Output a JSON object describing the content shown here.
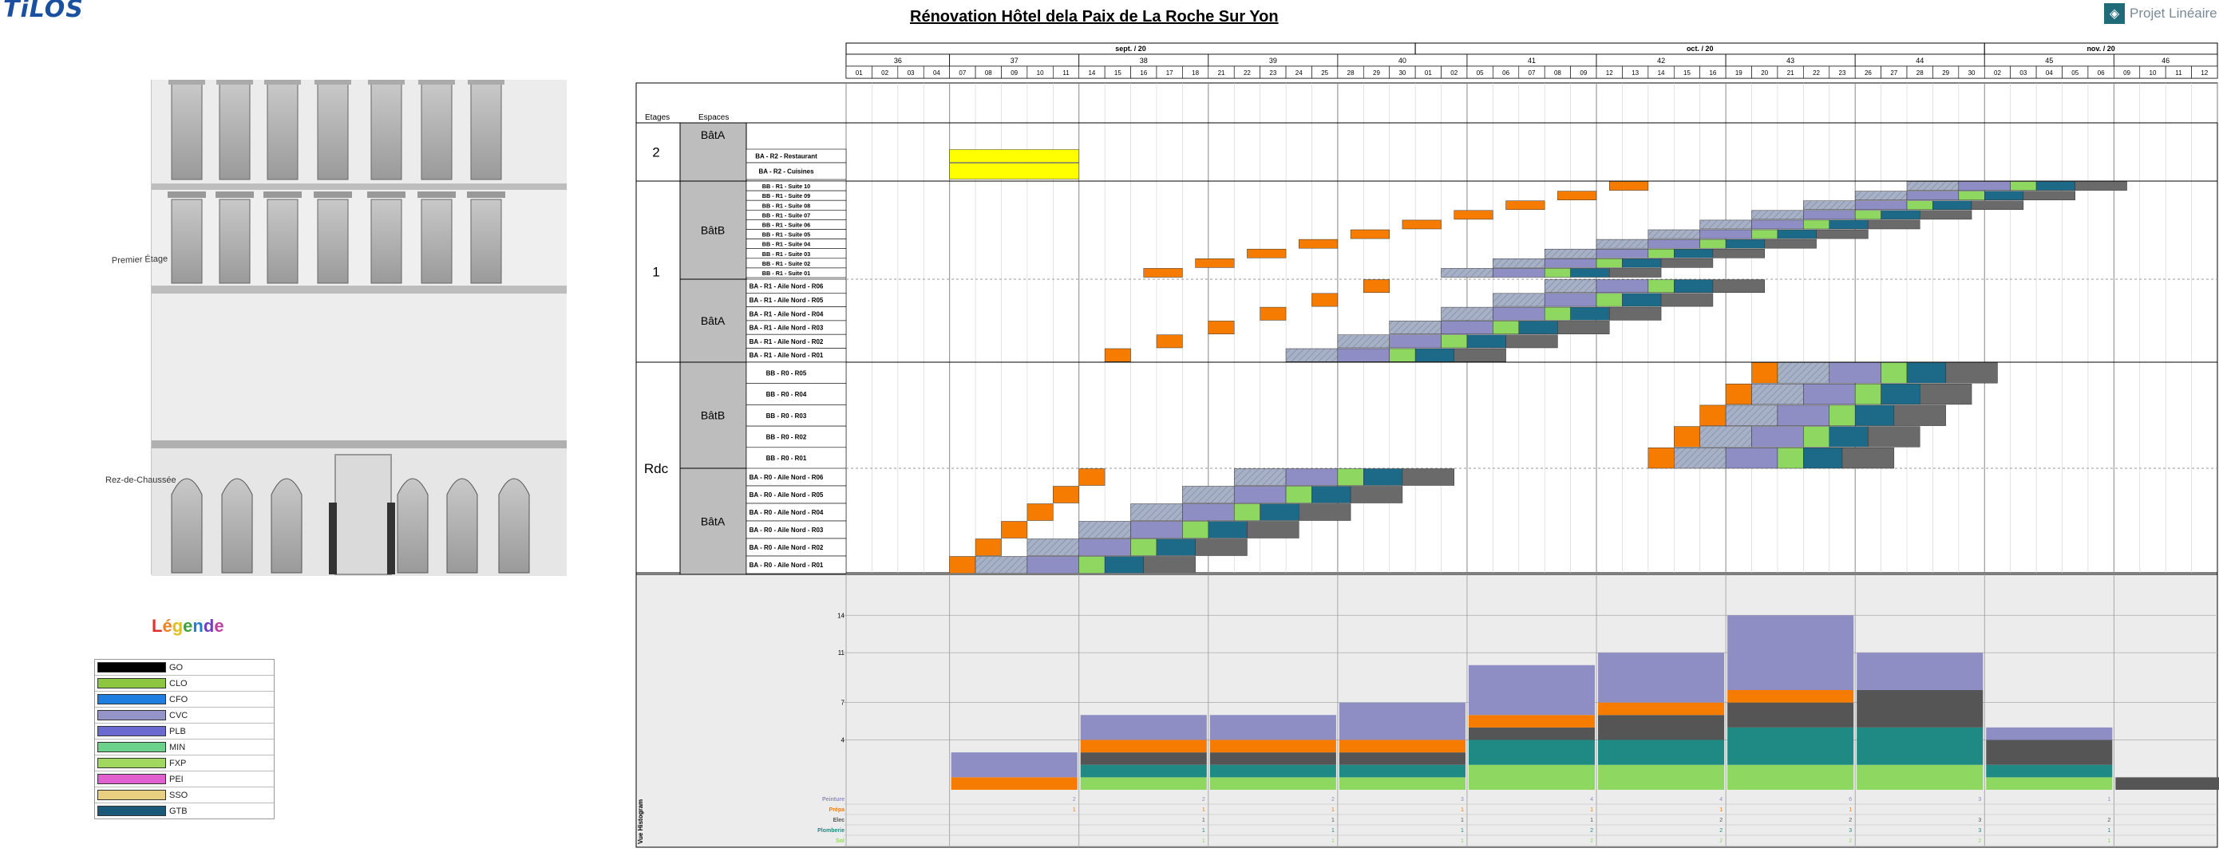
{
  "header": {
    "logo_text": "TiLOS",
    "title": "Rénovation Hôtel dela Paix de La Roche Sur Yon",
    "brand": "Projet Linéaire"
  },
  "facade": {
    "floor_labels": [
      "Premier Étage",
      "Rez-de-Chaussée"
    ]
  },
  "legend": {
    "title": "Légende",
    "title_colors": [
      "#e03030",
      "#f08020",
      "#e0c020",
      "#40a040",
      "#2080d0",
      "#7040c0",
      "#c040a0"
    ],
    "items": [
      {
        "label": "GO",
        "color": "#000000"
      },
      {
        "label": "CLO",
        "color": "#8dc63f"
      },
      {
        "label": "CFO",
        "color": "#1e7fe0"
      },
      {
        "label": "CVC",
        "color": "#9494c8"
      },
      {
        "label": "PLB",
        "color": "#6a6ad0"
      },
      {
        "label": "MIN",
        "color": "#6ad28a"
      },
      {
        "label": "FXP",
        "color": "#a0d860"
      },
      {
        "label": "PEI",
        "color": "#e060d0"
      },
      {
        "label": "SSO",
        "color": "#e8d080"
      },
      {
        "label": "GTB",
        "color": "#1a5a78"
      }
    ]
  },
  "timeline": {
    "months": [
      {
        "label": "sept. / 20"
      },
      {
        "label": "oct. / 20"
      },
      {
        "label": "nov. / 20"
      }
    ],
    "weeks": [
      "36",
      "37",
      "38",
      "39",
      "40",
      "41",
      "42",
      "43",
      "44",
      "45",
      "46"
    ],
    "days": [
      "01",
      "02",
      "03",
      "04",
      "07",
      "08",
      "09",
      "10",
      "11",
      "14",
      "15",
      "16",
      "17",
      "18",
      "21",
      "22",
      "23",
      "24",
      "25",
      "28",
      "29",
      "30",
      "01",
      "02",
      "05",
      "06",
      "07",
      "08",
      "09",
      "12",
      "13",
      "14",
      "15",
      "16",
      "19",
      "20",
      "21",
      "22",
      "23",
      "26",
      "27",
      "28",
      "29",
      "30",
      "02",
      "03",
      "04",
      "05",
      "06",
      "09",
      "10",
      "11",
      "12"
    ]
  },
  "columns": {
    "etages": "Etages",
    "espaces": "Espaces"
  },
  "floors": [
    {
      "label": "2"
    },
    {
      "label": "1"
    },
    {
      "label": "Rdc"
    }
  ],
  "buildings": [
    {
      "label": "BâtA"
    },
    {
      "label": "BâtB"
    },
    {
      "label": "BâtA"
    },
    {
      "label": "BâtB"
    },
    {
      "label": "BâtA"
    }
  ],
  "rows": [
    "BA - R2 - Restaurant",
    "BA - R2 - Cuisines",
    "BB - R1 - Suite 10",
    "BB - R1 - Suite 09",
    "BB - R1 - Suite 08",
    "BB - R1 - Suite 07",
    "BB - R1 - Suite 06",
    "BB - R1 - Suite 05",
    "BB - R1 - Suite 04",
    "BB - R1 - Suite 03",
    "BB - R1 - Suite 02",
    "BB - R1 - Suite 01",
    "BA - R1 - Aile Nord - R06",
    "BA - R1 - Aile Nord - R05",
    "BA - R1 - Aile Nord - R04",
    "BA - R1 - Aile Nord - R03",
    "BA - R1 - Aile Nord - R02",
    "BA - R1 - Aile Nord - R01",
    "BB - R0 - R05",
    "BB - R0 - R04",
    "BB - R0 - R03",
    "BB - R0 - R02",
    "BB - R0 - R01",
    "BA - R0 - Aile Nord - R06",
    "BA - R0 - Aile Nord - R05",
    "BA - R0 - Aile Nord - R04",
    "BA - R0 - Aile Nord - R03",
    "BA - R0 - Aile Nord - R02",
    "BA - R0 - Aile Nord - R01"
  ],
  "task_colors": {
    "orange": "#f57c00",
    "hatch": "#a8b0c8",
    "purple": "#8e8ec4",
    "green": "#8ed862",
    "teal": "#1c6a88",
    "grey": "#6a6a6a",
    "yellow": "#ffff00"
  },
  "chart_data": {
    "type": "bar",
    "title": "",
    "xlabel": "",
    "ylabel": "Vue Histogram",
    "ylim": [
      0,
      16
    ],
    "y_ticks": [
      "4",
      "7",
      "11",
      "14"
    ],
    "categories": [
      "37",
      "38",
      "39",
      "40",
      "41",
      "42",
      "43",
      "44",
      "45",
      "46"
    ],
    "series": [
      {
        "name": "Sol",
        "color": "#8ed862",
        "values": [
          0,
          1,
          1,
          1,
          2,
          2,
          2,
          2,
          1,
          0
        ]
      },
      {
        "name": "Plomberie",
        "color": "#1f8a84",
        "values": [
          0,
          1,
          1,
          1,
          2,
          2,
          3,
          3,
          1,
          0
        ]
      },
      {
        "name": "Elec",
        "color": "#555555",
        "values": [
          0,
          1,
          1,
          1,
          1,
          2,
          2,
          3,
          2,
          1
        ]
      },
      {
        "name": "Prépa",
        "color": "#f57c00",
        "values": [
          1,
          1,
          1,
          1,
          1,
          1,
          1,
          0,
          0,
          0
        ]
      },
      {
        "name": "Peinture",
        "color": "#8e8ec4",
        "values": [
          2,
          2,
          2,
          3,
          4,
          4,
          6,
          3,
          1,
          0
        ]
      }
    ],
    "table_values": {
      "Peinture": [
        "2",
        "2",
        "2",
        "3",
        "4",
        "4",
        "6",
        "3",
        "1",
        ""
      ],
      "Prépa": [
        "1",
        "1",
        "1",
        "1",
        "1",
        "1",
        "1",
        "",
        "",
        ""
      ],
      "Elec": [
        "",
        "1",
        "1",
        "1",
        "1",
        "2",
        "2",
        "3",
        "2",
        "1"
      ],
      "Plomberie": [
        "",
        "1",
        "1",
        "1",
        "2",
        "2",
        "3",
        "3",
        "1",
        ""
      ],
      "Sol": [
        "",
        "1",
        "1",
        "1",
        "2",
        "2",
        "2",
        "2",
        "1",
        ""
      ]
    }
  }
}
